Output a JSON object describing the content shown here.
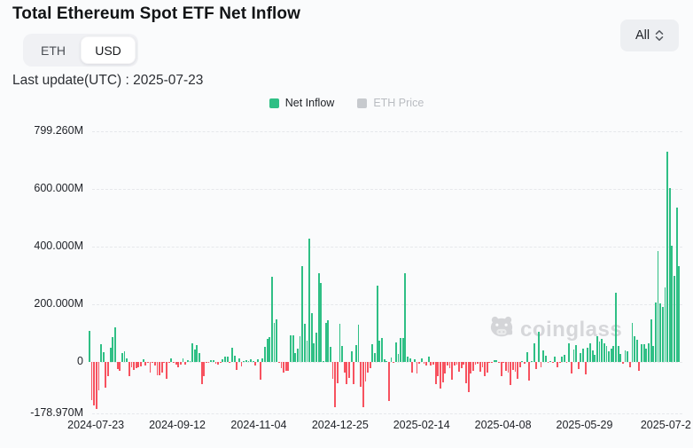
{
  "header": {
    "title": "Total Ethereum Spot ETF Net Inflow",
    "unit_toggle": {
      "options": [
        "ETH",
        "USD"
      ],
      "selected": "USD"
    },
    "range_select": {
      "value": "All"
    },
    "last_update": "Last update(UTC) : 2025-07-23"
  },
  "legend": {
    "net_inflow": "Net Inflow",
    "eth_price": "ETH Price"
  },
  "watermark": "coinglass",
  "colors": {
    "positive": "#2fbf85",
    "negative": "#f7525f",
    "legend_disabled": "#c7cace",
    "gridline": "#e6e8eb"
  },
  "chart_data": {
    "type": "bar",
    "title": "Total Ethereum Spot ETF Net Inflow",
    "series_name": "Net Inflow",
    "secondary_series_hidden": "ETH Price",
    "unit": "USD millions",
    "date_range": [
      "2024-07-23",
      "2025-07-23"
    ],
    "ylim": [
      -178.97,
      799.26
    ],
    "grid": "dashed-horizontal",
    "legend_position": "top-center",
    "x_ticks": [
      "2024-07-23",
      "2024-09-12",
      "2024-11-04",
      "2024-12-25",
      "2025-02-14",
      "2025-04-08",
      "2025-05-29",
      "2025-07-2"
    ],
    "y_ticks": [
      {
        "label": "799.260M",
        "value": 799.26
      },
      {
        "label": "600.000M",
        "value": 600
      },
      {
        "label": "400.000M",
        "value": 400
      },
      {
        "label": "200.000M",
        "value": 200
      },
      {
        "label": "0",
        "value": 0
      },
      {
        "label": "-178.970M",
        "value": -178.97
      }
    ],
    "values": [
      107,
      -133,
      -152,
      -163,
      -98,
      62,
      34,
      -90,
      -50,
      49,
      85,
      118,
      -24,
      -30,
      30,
      35,
      12,
      -50,
      -18,
      -28,
      -22,
      -20,
      -15,
      8,
      -12,
      -5,
      -37,
      -3,
      -12,
      -48,
      -47,
      -38,
      -1,
      -60,
      -5,
      11,
      -1,
      -9,
      -20,
      -9,
      12,
      -10,
      5,
      3,
      63,
      43,
      59,
      29,
      -77,
      -49,
      -3,
      -3,
      7,
      7,
      -8,
      -10,
      -1,
      10,
      17,
      17,
      -1,
      48,
      20,
      -29,
      12,
      -17,
      1,
      7,
      1,
      8,
      3,
      -12,
      10,
      -63,
      11,
      52,
      80,
      86,
      296,
      136,
      147,
      -3,
      -22,
      -39,
      -30,
      -30,
      91,
      91,
      30,
      45,
      90,
      333,
      133,
      73,
      428,
      168,
      63,
      100,
      306,
      274,
      2,
      136,
      145,
      51,
      -60,
      -159,
      -75,
      131,
      54,
      -38,
      -76,
      -56,
      36,
      -78,
      59,
      129,
      -87,
      -159,
      -68,
      -39,
      -23,
      60,
      30,
      264,
      74,
      81,
      10,
      2,
      -136,
      14,
      -5,
      68,
      28,
      84,
      84,
      308,
      18,
      11,
      -39,
      8,
      -41,
      -7,
      13,
      -6,
      -13,
      19,
      -13,
      -9,
      -78,
      -50,
      -94,
      -71,
      -42,
      -12,
      -21,
      -63,
      -12,
      -10,
      -33,
      -22,
      -10,
      -74,
      -105,
      -40,
      -30,
      -9,
      -6,
      -33,
      -20,
      -50,
      -36,
      -4,
      -2,
      6,
      6,
      -3,
      -51,
      -2,
      -30,
      -37,
      -82,
      -29,
      -33,
      -60,
      -20,
      2,
      -6,
      33,
      -64,
      1,
      63,
      -25,
      104,
      -18,
      40,
      20,
      -2,
      2,
      -4,
      18,
      -18,
      -2,
      17,
      25,
      -4,
      64,
      -40,
      42,
      58,
      -25,
      30,
      45,
      -45,
      50,
      65,
      40,
      25,
      90,
      70,
      80,
      65,
      55,
      35,
      45,
      55,
      240,
      55,
      28,
      -8,
      40,
      35,
      -20,
      135,
      90,
      75,
      -30,
      60,
      60,
      45,
      65,
      148,
      55,
      205,
      385,
      203,
      190,
      258,
      727,
      602,
      402,
      297,
      534,
      332
    ]
  }
}
